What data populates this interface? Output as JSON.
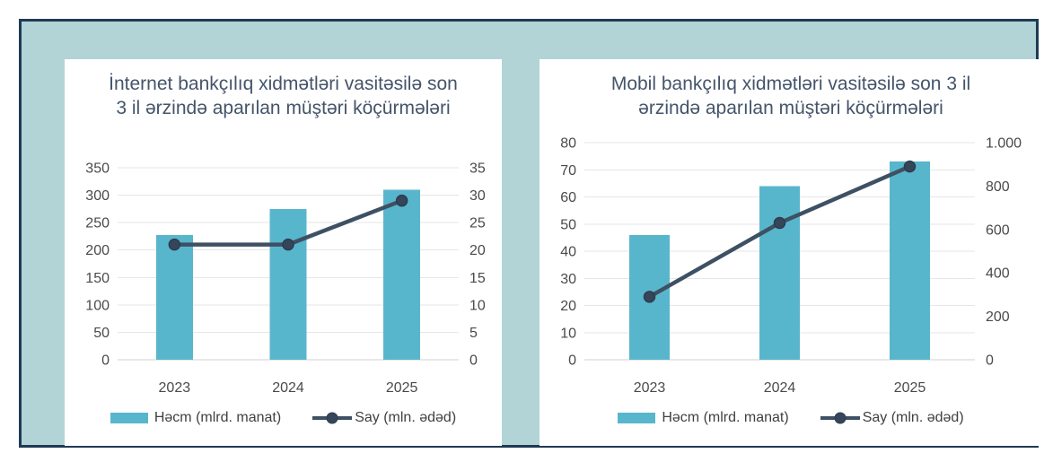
{
  "frame": {
    "fill": "#b2d4d6",
    "border": "#1f3a55",
    "panel_background": "#ffffff"
  },
  "colors": {
    "bar": "#58b6cc",
    "line": "#3e5063",
    "marker_fill": "#36465a",
    "marker_stroke": "#2d3c4e",
    "grid": "#e6e6e6",
    "axis_line": "#d2d2d2",
    "tick_text": "#4a4a4a",
    "title_text": "#44546a"
  },
  "chart_data": [
    {
      "type": "bar",
      "subtype": "combo-bar-line-dual-axis",
      "title": "İnternet bankçılıq xidmətləri vasitəsilə son 3 il ərzində aparılan müştəri köçürmələri",
      "categories": [
        "2023",
        "2024",
        "2025"
      ],
      "series": [
        {
          "name": "Həcm (mlrd. manat)",
          "kind": "bar",
          "axis": "left",
          "values": [
            227,
            275,
            310
          ]
        },
        {
          "name": "Say (mln. ədəd)",
          "kind": "line",
          "axis": "right",
          "values": [
            21,
            21,
            29
          ]
        }
      ],
      "left_axis": {
        "min": 0,
        "max": 350,
        "ticks": [
          0,
          50,
          100,
          150,
          200,
          250,
          300,
          350
        ]
      },
      "right_axis": {
        "min": 0,
        "max": 35,
        "ticks": [
          0,
          5,
          10,
          15,
          20,
          25,
          30,
          35
        ]
      },
      "grid": true,
      "legend_position": "bottom"
    },
    {
      "type": "bar",
      "subtype": "combo-bar-line-dual-axis",
      "title": "Mobil bankçılıq xidmətləri vasitəsilə son 3 il ərzində aparılan müştəri köçürmələri",
      "categories": [
        "2023",
        "2024",
        "2025"
      ],
      "series": [
        {
          "name": "Həcm (mlrd. manat)",
          "kind": "bar",
          "axis": "left",
          "values": [
            46,
            64,
            73
          ]
        },
        {
          "name": "Say (mln. ədəd)",
          "kind": "line",
          "axis": "right",
          "values": [
            290,
            630,
            890
          ]
        }
      ],
      "left_axis": {
        "min": 0,
        "max": 80,
        "ticks": [
          0,
          10,
          20,
          30,
          40,
          50,
          60,
          70,
          80
        ]
      },
      "right_axis": {
        "min": 0,
        "max": 1000,
        "ticks": [
          0,
          200,
          400,
          600,
          800,
          1000
        ],
        "tick_labels": [
          "0",
          "200",
          "400",
          "600",
          "800",
          "1.000"
        ]
      },
      "grid": true,
      "legend_position": "bottom"
    }
  ]
}
